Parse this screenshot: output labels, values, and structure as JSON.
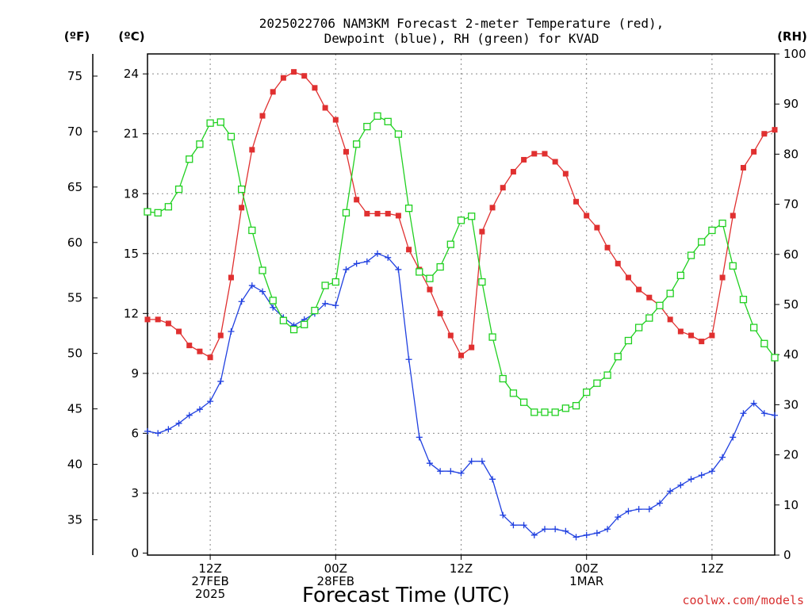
{
  "chart_data": {
    "type": "line",
    "title_line1": "2025022706 NAM3KM Forecast 2-meter Temperature (red),",
    "title_line2": "Dewpoint (blue), RH (green) for KVAD",
    "xlabel": "Forecast Time (UTC)",
    "credit": "coolwx.com/models",
    "unit_f": "(ºF)",
    "unit_c": "(ºC)",
    "unit_rh": "(RH)",
    "x_ticks": [
      {
        "x": 6,
        "line1": "12Z",
        "line2": "27FEB",
        "line3": "2025"
      },
      {
        "x": 18,
        "line1": "00Z",
        "line2": "28FEB",
        "line3": ""
      },
      {
        "x": 30,
        "line1": "12Z",
        "line2": "",
        "line3": ""
      },
      {
        "x": 42,
        "line1": "00Z",
        "line2": "1MAR",
        "line3": ""
      },
      {
        "x": 54,
        "line1": "12Z",
        "line2": "",
        "line3": ""
      }
    ],
    "xlim": [
      0,
      60
    ],
    "ylim_c": [
      -0.1,
      25.0
    ],
    "ylim_rh": [
      0,
      100
    ],
    "c_ticks": [
      "0",
      "3",
      "6",
      "9",
      "12",
      "15",
      "18",
      "21",
      "24"
    ],
    "f_ticks": [
      "35",
      "40",
      "45",
      "50",
      "55",
      "60",
      "65",
      "70",
      "75"
    ],
    "rh_ticks": [
      "0",
      "10",
      "20",
      "30",
      "40",
      "50",
      "60",
      "70",
      "80",
      "90",
      "100"
    ],
    "series": [
      {
        "color": "#e03030",
        "marker": "filled-square",
        "x": [
          0,
          1,
          2,
          3,
          4,
          5,
          6,
          7,
          8,
          9,
          10,
          11,
          12,
          13,
          14,
          15,
          16,
          17,
          18,
          19,
          20,
          21,
          22,
          23,
          24,
          25,
          26,
          27,
          28,
          29,
          30,
          31,
          32,
          33,
          34,
          35,
          36,
          37,
          38,
          39,
          40,
          41,
          42,
          43,
          44,
          45,
          46,
          47,
          48,
          49,
          50,
          51,
          52,
          53,
          54,
          55,
          56,
          57,
          58,
          59,
          60
        ],
        "values": [
          11.7,
          11.7,
          11.5,
          11.1,
          10.4,
          10.1,
          9.8,
          10.9,
          13.8,
          17.3,
          20.2,
          21.9,
          23.1,
          23.8,
          24.1,
          23.9,
          23.3,
          22.3,
          21.7,
          20.1,
          17.7,
          17.0,
          17.0,
          17.0,
          16.9,
          15.2,
          14.2,
          13.2,
          12.0,
          10.9,
          9.9,
          10.3,
          16.1,
          17.3,
          18.3,
          19.1,
          19.7,
          20.0,
          20.0,
          19.6,
          19.0,
          17.6,
          16.9,
          16.3,
          15.3,
          14.5,
          13.8,
          13.2,
          12.8,
          12.4,
          11.7,
          11.1,
          10.9,
          10.6,
          10.9,
          13.8,
          16.9,
          19.3,
          20.1,
          21.0,
          21.2
        ]
      },
      {
        "color": "#2040e0",
        "marker": "plus",
        "x": [
          0,
          1,
          2,
          3,
          4,
          5,
          6,
          7,
          8,
          9,
          10,
          11,
          12,
          13,
          14,
          15,
          16,
          17,
          18,
          19,
          20,
          21,
          22,
          23,
          24,
          25,
          26,
          27,
          28,
          29,
          30,
          31,
          32,
          33,
          34,
          35,
          36,
          37,
          38,
          39,
          40,
          41,
          42,
          43,
          44,
          45,
          46,
          47,
          48,
          49,
          50,
          51,
          52,
          53,
          54,
          55,
          56,
          57,
          58,
          59,
          60
        ],
        "values": [
          6.1,
          6.0,
          6.2,
          6.5,
          6.9,
          7.2,
          7.6,
          8.6,
          11.1,
          12.6,
          13.4,
          13.1,
          12.3,
          11.8,
          11.4,
          11.7,
          12.0,
          12.5,
          12.4,
          14.2,
          14.5,
          14.6,
          15.0,
          14.8,
          14.2,
          9.7,
          5.8,
          4.5,
          4.1,
          4.1,
          4.0,
          4.6,
          4.6,
          3.7,
          1.9,
          1.4,
          1.4,
          0.9,
          1.2,
          1.2,
          1.1,
          0.8,
          0.9,
          1.0,
          1.2,
          1.8,
          2.1,
          2.2,
          2.2,
          2.5,
          3.1,
          3.4,
          3.7,
          3.9,
          4.1,
          4.8,
          5.8,
          7.0,
          7.5,
          7.0,
          6.9
        ]
      },
      {
        "color": "#20d020",
        "marker": "open-square",
        "x": [
          0,
          1,
          2,
          3,
          4,
          5,
          6,
          7,
          8,
          9,
          10,
          11,
          12,
          13,
          14,
          15,
          16,
          17,
          18,
          19,
          20,
          21,
          22,
          23,
          24,
          25,
          26,
          27,
          28,
          29,
          30,
          31,
          32,
          33,
          34,
          35,
          36,
          37,
          38,
          39,
          40,
          41,
          42,
          43,
          44,
          45,
          46,
          47,
          48,
          49,
          50,
          51,
          52,
          53,
          54,
          55,
          56,
          57,
          58,
          59,
          60
        ],
        "values": [
          68.5,
          68.3,
          69.5,
          73.0,
          79.0,
          82.0,
          86.2,
          86.4,
          83.5,
          73.0,
          64.8,
          56.8,
          50.8,
          46.8,
          45.0,
          46.0,
          48.8,
          53.8,
          54.5,
          68.3,
          82.0,
          85.5,
          87.6,
          86.5,
          84.0,
          69.2,
          56.5,
          55.2,
          57.5,
          62.0,
          66.8,
          67.6,
          54.5,
          43.5,
          35.2,
          32.3,
          30.5,
          28.5,
          28.5,
          28.5,
          29.3,
          29.8,
          32.5,
          34.3,
          35.9,
          39.6,
          42.8,
          45.4,
          47.3,
          49.8,
          52.2,
          55.8,
          59.8,
          62.5,
          64.8,
          66.2,
          57.7,
          51.0,
          45.4,
          42.2,
          39.4
        ]
      }
    ]
  }
}
